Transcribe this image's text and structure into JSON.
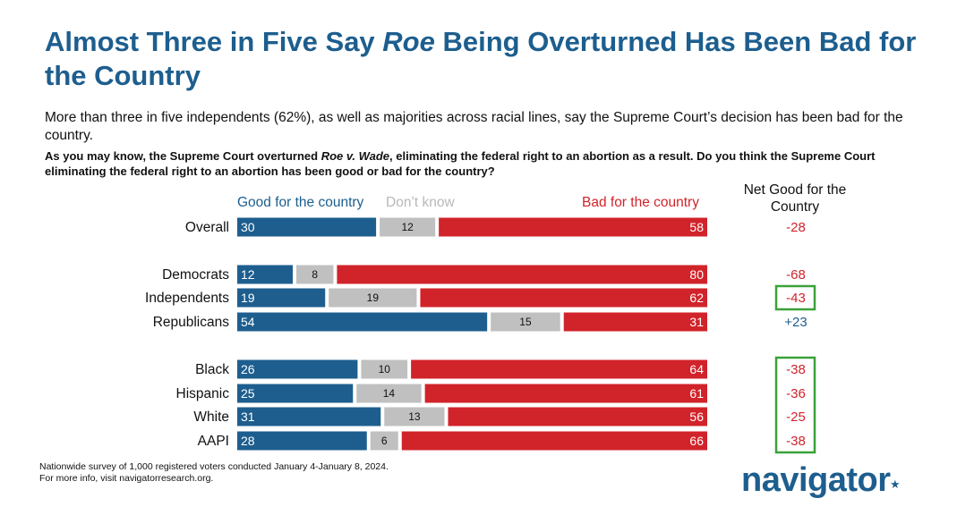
{
  "title": {
    "before": "Almost Three in Five Say ",
    "emph": "Roe",
    "after": " Being Overturned Has Been Bad for the Country"
  },
  "subtitle": "More than three in five independents (62%), as well as majorities across racial lines, say the Supreme Court’s decision has been bad for the country.",
  "question": {
    "before": "As you may know, the Supreme Court overturned ",
    "emph": "Roe v. Wade",
    "after": ", eliminating the federal right to an abortion as a result. Do you think the Supreme Court eliminating the federal right to an abortion has been good or bad for the country?"
  },
  "footnote": {
    "line1": "Nationwide survey of 1,000 registered voters conducted January 4-January 8, 2024.",
    "line2": "For more info, visit navigatorresearch.org."
  },
  "logo": "navigator",
  "colors": {
    "good": "#1d5e8e",
    "dont_know": "#c0c0c0",
    "bad": "#d1232a",
    "highlight_box": "#3aa23a",
    "net_negative": "#d1232a",
    "net_positive": "#1d5e8e"
  },
  "chart_data": {
    "type": "bar",
    "orientation": "horizontal-stacked",
    "net_header": "Net Good for the Country",
    "series": [
      {
        "name": "Good for the country",
        "values": [
          30,
          12,
          19,
          54,
          26,
          25,
          31,
          28
        ]
      },
      {
        "name": "Don’t know",
        "values": [
          12,
          8,
          19,
          15,
          10,
          14,
          13,
          6
        ]
      },
      {
        "name": "Bad for the country",
        "values": [
          58,
          80,
          62,
          31,
          64,
          61,
          56,
          66
        ]
      }
    ],
    "categories": [
      "Overall",
      "Democrats",
      "Independents",
      "Republicans",
      "Black",
      "Hispanic",
      "White",
      "AAPI"
    ],
    "net": [
      "-28",
      "-68",
      "-43",
      "+23",
      "-38",
      "-36",
      "-25",
      "-38"
    ],
    "highlighted": [
      false,
      false,
      true,
      false,
      true,
      true,
      true,
      true
    ]
  }
}
